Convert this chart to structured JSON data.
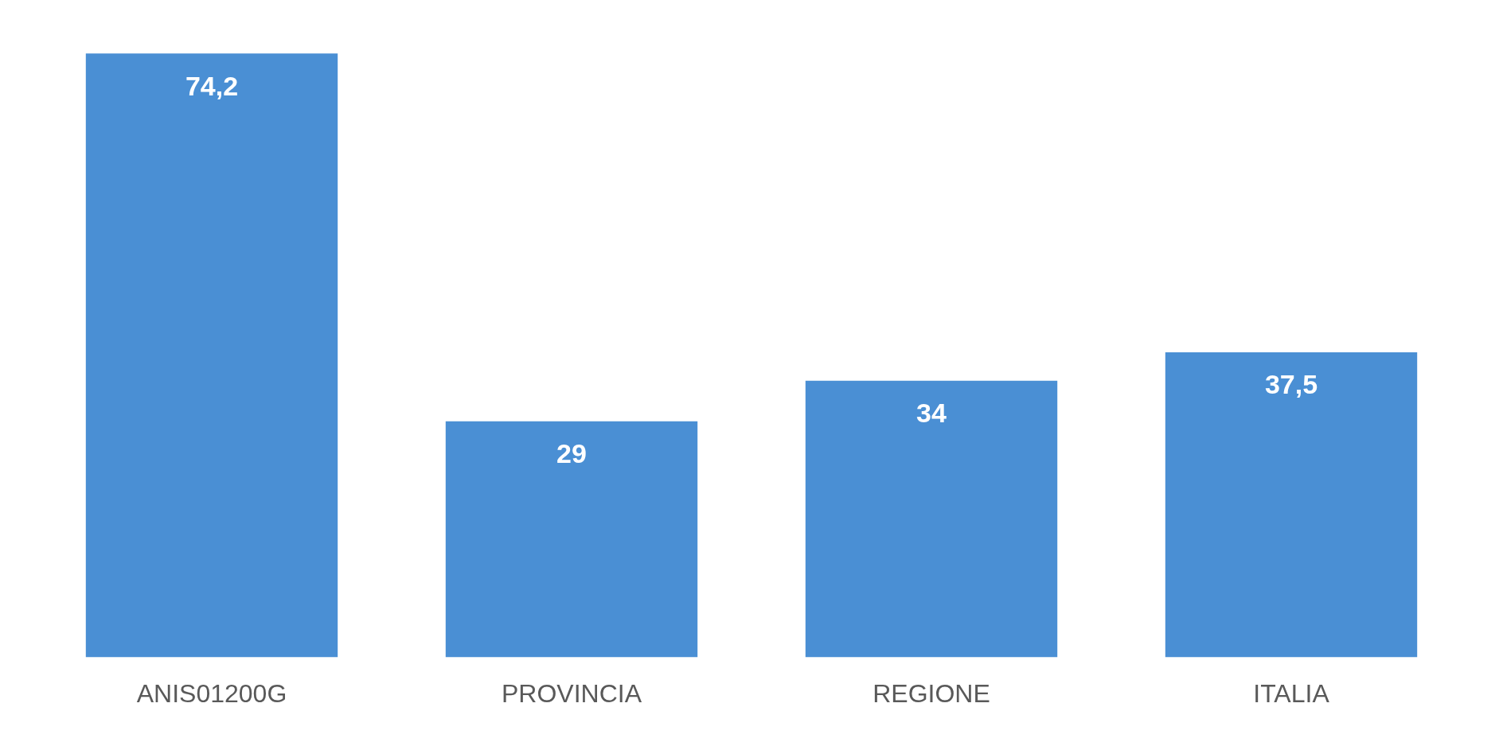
{
  "chart_data": {
    "type": "bar",
    "categories": [
      "ANIS01200G",
      "PROVINCIA",
      "REGIONE",
      "ITALIA"
    ],
    "values": [
      74.2,
      29,
      34,
      37.5
    ],
    "value_labels": [
      "74,2",
      "29",
      "34",
      "37,5"
    ],
    "color": "#4a8fd4",
    "grid": false,
    "legend": false
  }
}
